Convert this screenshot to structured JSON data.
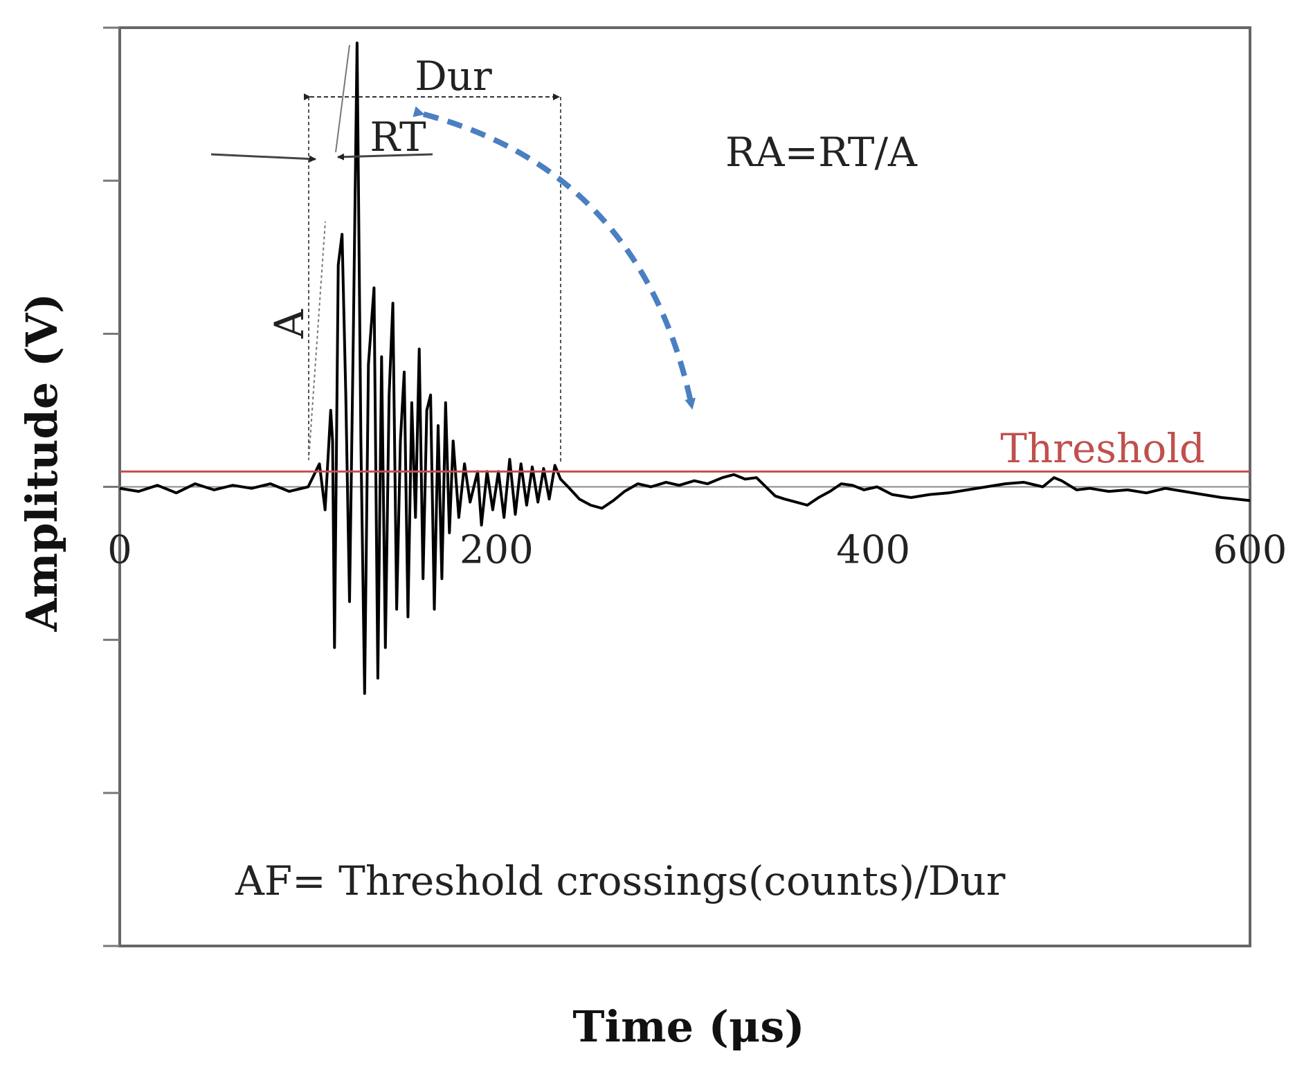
{
  "chart_data": {
    "type": "line",
    "xlabel": "Time (μs)",
    "ylabel": "Amplitude (V)",
    "xlim": [
      0,
      600
    ],
    "ylim": [
      -3,
      3
    ],
    "x_ticks": [
      {
        "value": 0,
        "label": "0"
      },
      {
        "value": 200,
        "label": "200"
      },
      {
        "value": 400,
        "label": "400"
      },
      {
        "value": 600,
        "label": "600"
      }
    ],
    "y_ticks": [
      -3,
      -2,
      -1,
      0,
      1,
      2,
      3
    ],
    "grid": false,
    "threshold": {
      "label": "Threshold",
      "value": 0.1,
      "color": "#c0504d"
    },
    "series": [
      {
        "color": "#000000",
        "points": [
          [
            0,
            -0.01
          ],
          [
            10,
            -0.03
          ],
          [
            20,
            0.01
          ],
          [
            30,
            -0.04
          ],
          [
            40,
            0.02
          ],
          [
            50,
            -0.02
          ],
          [
            60,
            0.01
          ],
          [
            70,
            -0.01
          ],
          [
            80,
            0.02
          ],
          [
            90,
            -0.03
          ],
          [
            100,
            0.0
          ],
          [
            106,
            0.15
          ],
          [
            109,
            -0.15
          ],
          [
            112,
            0.5
          ],
          [
            113,
            0.3
          ],
          [
            114,
            -1.05
          ],
          [
            116,
            1.45
          ],
          [
            118,
            1.65
          ],
          [
            120,
            0.6
          ],
          [
            122,
            -0.75
          ],
          [
            124,
            1.0
          ],
          [
            126,
            2.9
          ],
          [
            128,
            0.3
          ],
          [
            130,
            -1.35
          ],
          [
            132,
            0.8
          ],
          [
            135,
            1.3
          ],
          [
            137,
            -1.25
          ],
          [
            139,
            0.85
          ],
          [
            141,
            -1.05
          ],
          [
            143,
            0.6
          ],
          [
            145,
            1.2
          ],
          [
            147,
            -0.8
          ],
          [
            149,
            0.3
          ],
          [
            151,
            0.75
          ],
          [
            153,
            -0.85
          ],
          [
            155,
            0.55
          ],
          [
            157,
            -0.2
          ],
          [
            159,
            0.9
          ],
          [
            161,
            -0.6
          ],
          [
            163,
            0.5
          ],
          [
            165,
            0.6
          ],
          [
            167,
            -0.8
          ],
          [
            169,
            0.4
          ],
          [
            171,
            -0.6
          ],
          [
            173,
            0.55
          ],
          [
            175,
            -0.3
          ],
          [
            177,
            0.3
          ],
          [
            180,
            -0.2
          ],
          [
            183,
            0.15
          ],
          [
            186,
            -0.1
          ],
          [
            190,
            0.1
          ],
          [
            192,
            -0.25
          ],
          [
            195,
            0.1
          ],
          [
            198,
            -0.15
          ],
          [
            201,
            0.1
          ],
          [
            204,
            -0.2
          ],
          [
            207,
            0.18
          ],
          [
            210,
            -0.18
          ],
          [
            213,
            0.15
          ],
          [
            216,
            -0.12
          ],
          [
            219,
            0.13
          ],
          [
            222,
            -0.1
          ],
          [
            225,
            0.12
          ],
          [
            228,
            -0.08
          ],
          [
            231,
            0.14
          ],
          [
            234,
            0.05
          ],
          [
            238,
            0.0
          ],
          [
            244,
            -0.08
          ],
          [
            250,
            -0.12
          ],
          [
            256,
            -0.14
          ],
          [
            262,
            -0.09
          ],
          [
            268,
            -0.03
          ],
          [
            275,
            0.02
          ],
          [
            282,
            0.0
          ],
          [
            290,
            0.03
          ],
          [
            297,
            0.01
          ],
          [
            305,
            0.04
          ],
          [
            312,
            0.02
          ],
          [
            320,
            0.06
          ],
          [
            326,
            0.08
          ],
          [
            332,
            0.05
          ],
          [
            338,
            0.06
          ],
          [
            343,
            0.0
          ],
          [
            348,
            -0.06
          ],
          [
            353,
            -0.08
          ],
          [
            359,
            -0.1
          ],
          [
            365,
            -0.12
          ],
          [
            371,
            -0.07
          ],
          [
            377,
            -0.03
          ],
          [
            383,
            0.02
          ],
          [
            389,
            0.01
          ],
          [
            395,
            -0.02
          ],
          [
            402,
            0.0
          ],
          [
            410,
            -0.05
          ],
          [
            420,
            -0.07
          ],
          [
            430,
            -0.05
          ],
          [
            440,
            -0.04
          ],
          [
            450,
            -0.02
          ],
          [
            460,
            0.0
          ],
          [
            470,
            0.02
          ],
          [
            480,
            0.03
          ],
          [
            490,
            0.0
          ],
          [
            496,
            0.06
          ],
          [
            500,
            0.04
          ],
          [
            508,
            -0.02
          ],
          [
            515,
            -0.01
          ],
          [
            525,
            -0.03
          ],
          [
            535,
            -0.02
          ],
          [
            545,
            -0.04
          ],
          [
            555,
            -0.01
          ],
          [
            565,
            -0.03
          ],
          [
            575,
            -0.05
          ],
          [
            585,
            -0.07
          ],
          [
            593,
            -0.08
          ],
          [
            600,
            -0.09
          ]
        ]
      }
    ],
    "annotations": {
      "duration_label": "Dur",
      "rise_time_label": "RT",
      "amplitude_label": "A",
      "ra_formula": "RA=RT/A",
      "af_formula": "AF= Threshold crossings(counts)/Dur",
      "arrow_color": "#4a7fc1"
    }
  }
}
